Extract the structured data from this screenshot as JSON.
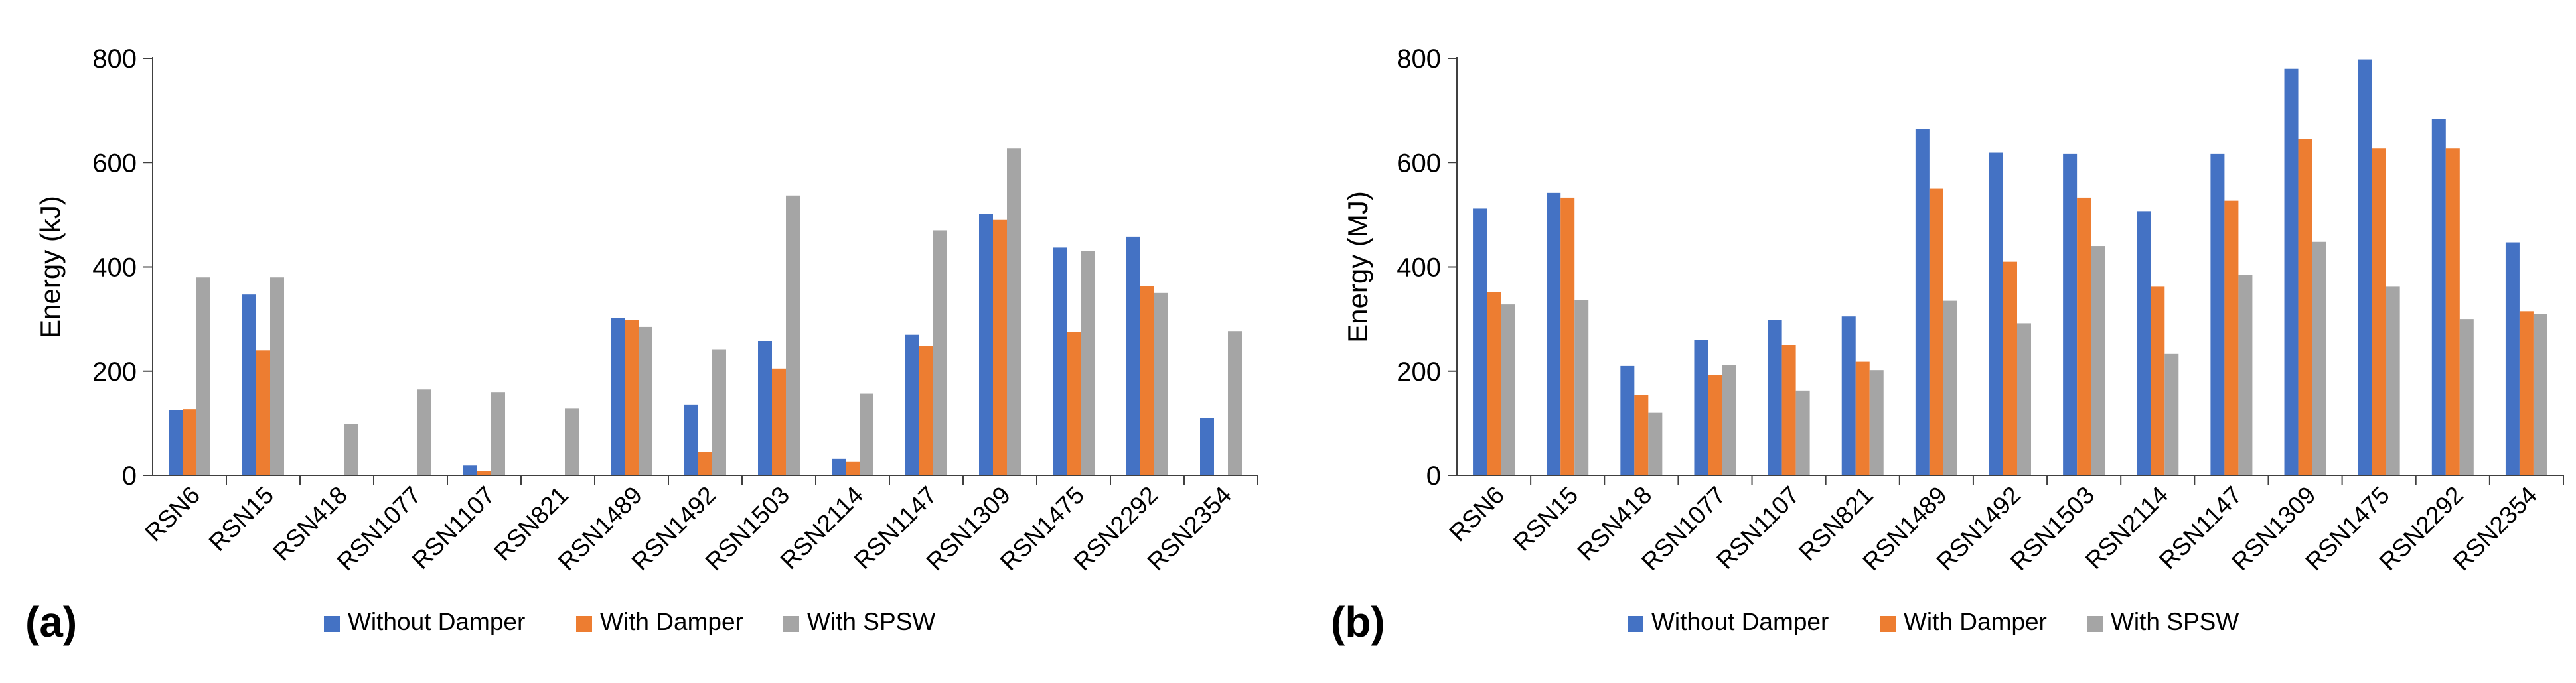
{
  "series_colors": {
    "Without Damper": "#4472c4",
    "With Damper": "#ed7d31",
    "With SPSW": "#a5a5a5"
  },
  "chart_data": [
    {
      "type": "bar",
      "panel": "(a)",
      "title": "",
      "xlabel": "",
      "ylabel": "Energy (kJ)",
      "ylim": [
        0,
        800
      ],
      "yticks": [
        0,
        200,
        400,
        600,
        800
      ],
      "grid": false,
      "legend": "bottom",
      "categories": [
        "RSN6",
        "RSN15",
        "RSN418",
        "RSN1077",
        "RSN1107",
        "RSN821",
        "RSN1489",
        "RSN1492",
        "RSN1503",
        "RSN2114",
        "RSN1147",
        "RSN1309",
        "RSN1475",
        "RSN2292",
        "RSN2354"
      ],
      "series": [
        {
          "name": "Without Damper",
          "values": [
            125,
            347,
            0,
            0,
            20,
            0,
            302,
            135,
            258,
            32,
            270,
            502,
            437,
            458,
            110
          ]
        },
        {
          "name": "With Damper",
          "values": [
            127,
            240,
            0,
            0,
            8,
            0,
            298,
            45,
            205,
            27,
            248,
            490,
            275,
            363,
            0
          ]
        },
        {
          "name": "With SPSW",
          "values": [
            380,
            380,
            98,
            165,
            160,
            128,
            285,
            241,
            537,
            157,
            470,
            628,
            430,
            350,
            277
          ]
        }
      ]
    },
    {
      "type": "bar",
      "panel": "(b)",
      "title": "",
      "xlabel": "",
      "ylabel": "Energy (MJ)",
      "ylim": [
        0,
        800
      ],
      "yticks": [
        0,
        200,
        400,
        600,
        800
      ],
      "grid": false,
      "legend": "bottom",
      "categories": [
        "RSN6",
        "RSN15",
        "RSN418",
        "RSN1077",
        "RSN1107",
        "RSN821",
        "RSN1489",
        "RSN1492",
        "RSN1503",
        "RSN2114",
        "RSN1147",
        "RSN1309",
        "RSN1475",
        "RSN2292",
        "RSN2354"
      ],
      "series": [
        {
          "name": "Without Damper",
          "values": [
            512,
            542,
            210,
            260,
            298,
            305,
            665,
            620,
            617,
            507,
            617,
            780,
            798,
            683,
            447
          ]
        },
        {
          "name": "With Damper",
          "values": [
            352,
            533,
            155,
            193,
            250,
            218,
            550,
            410,
            533,
            362,
            527,
            645,
            628,
            628,
            315
          ]
        },
        {
          "name": "With SPSW",
          "values": [
            328,
            337,
            120,
            212,
            163,
            202,
            335,
            292,
            440,
            233,
            385,
            448,
            362,
            300,
            310
          ]
        }
      ]
    }
  ]
}
